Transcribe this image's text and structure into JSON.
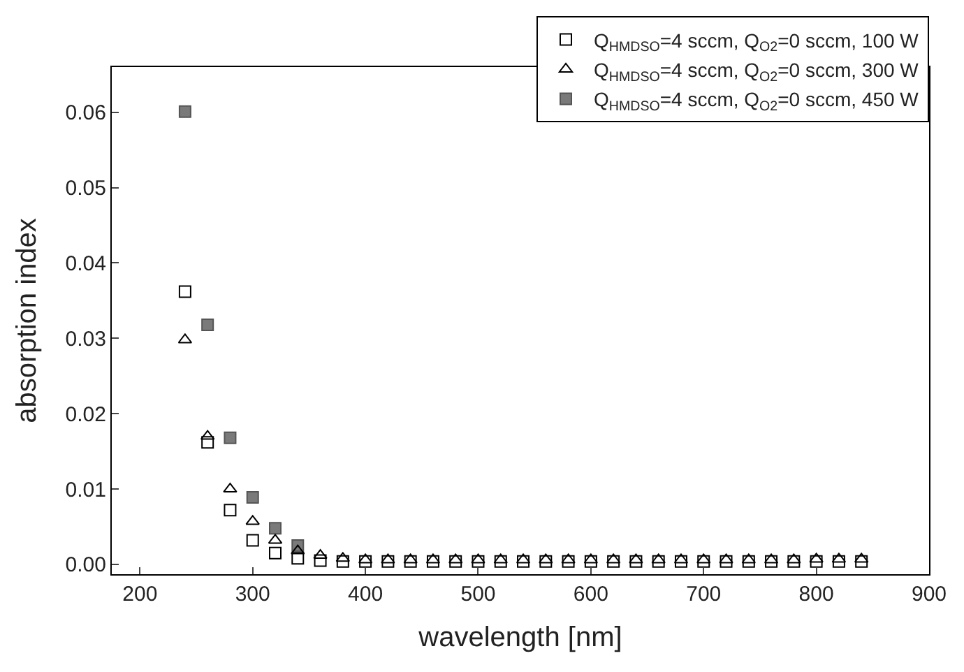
{
  "chart_data": {
    "type": "scatter",
    "xlabel": "wavelength [nm]",
    "ylabel": "absorption index",
    "x": [
      240,
      260,
      280,
      300,
      320,
      340,
      360,
      380,
      400,
      420,
      440,
      460,
      480,
      500,
      520,
      540,
      560,
      580,
      600,
      620,
      640,
      660,
      680,
      700,
      720,
      740,
      760,
      780,
      800,
      820,
      840
    ],
    "series": [
      {
        "name": "Q$_{HMDSO}$=4 sccm, Q$_{O2}$=0 sccm, 100 W",
        "color": "#000000",
        "marker": "square-open",
        "values": [
          0.0362,
          0.0162,
          0.0072,
          0.0032,
          0.0015,
          0.0008,
          0.0005,
          0.0004,
          0.0004,
          0.0004,
          0.0004,
          0.0004,
          0.0004,
          0.0004,
          0.0004,
          0.0004,
          0.0004,
          0.0004,
          0.0004,
          0.0004,
          0.0004,
          0.0004,
          0.0004,
          0.0004,
          0.0004,
          0.0004,
          0.0004,
          0.0004,
          0.0004,
          0.0004,
          0.0004
        ]
      },
      {
        "name": "Q$_{HMDSO}$=4 sccm, Q$_{O2}$=0 sccm, 300 W",
        "color": "#000000",
        "marker": "triangle-open",
        "values": [
          0.0298,
          0.017,
          0.01,
          0.0057,
          0.0032,
          0.0018,
          0.0012,
          0.0008,
          0.0006,
          0.0006,
          0.0006,
          0.0006,
          0.0006,
          0.0006,
          0.0006,
          0.0006,
          0.0006,
          0.0006,
          0.0006,
          0.0006,
          0.0006,
          0.0006,
          0.0006,
          0.0006,
          0.0006,
          0.0006,
          0.0006,
          0.0006,
          0.0007,
          0.0007,
          0.0007
        ]
      },
      {
        "name": "Q$_{HMDSO}$=4 sccm, Q$_{O2}$=0 sccm, 450 W",
        "color": "#7a7a7a",
        "marker": "square",
        "values": [
          0.0601,
          0.0318,
          0.0168,
          0.0089,
          0.0048,
          0.0025,
          null,
          null,
          null,
          null,
          null,
          null,
          null,
          null,
          null,
          null,
          null,
          null,
          null,
          null,
          null,
          null,
          null,
          null,
          null,
          null,
          null,
          null,
          null,
          null,
          null
        ]
      }
    ],
    "xlim": [
      175,
      900
    ],
    "xticks": [
      200,
      300,
      400,
      500,
      600,
      700,
      800,
      900
    ],
    "ylim": [
      -0.0013,
      0.066
    ],
    "yticks": [
      {
        "value": 0,
        "label": "0.00"
      },
      {
        "value": 0.01,
        "label": "0.01"
      },
      {
        "value": 0.02,
        "label": "0.02"
      },
      {
        "value": 0.03,
        "label": "0.03"
      },
      {
        "value": 0.04,
        "label": "0.04"
      },
      {
        "value": 0.05,
        "label": "0.05"
      },
      {
        "value": 0.06,
        "label": "0.06"
      }
    ],
    "legend": "top right"
  }
}
